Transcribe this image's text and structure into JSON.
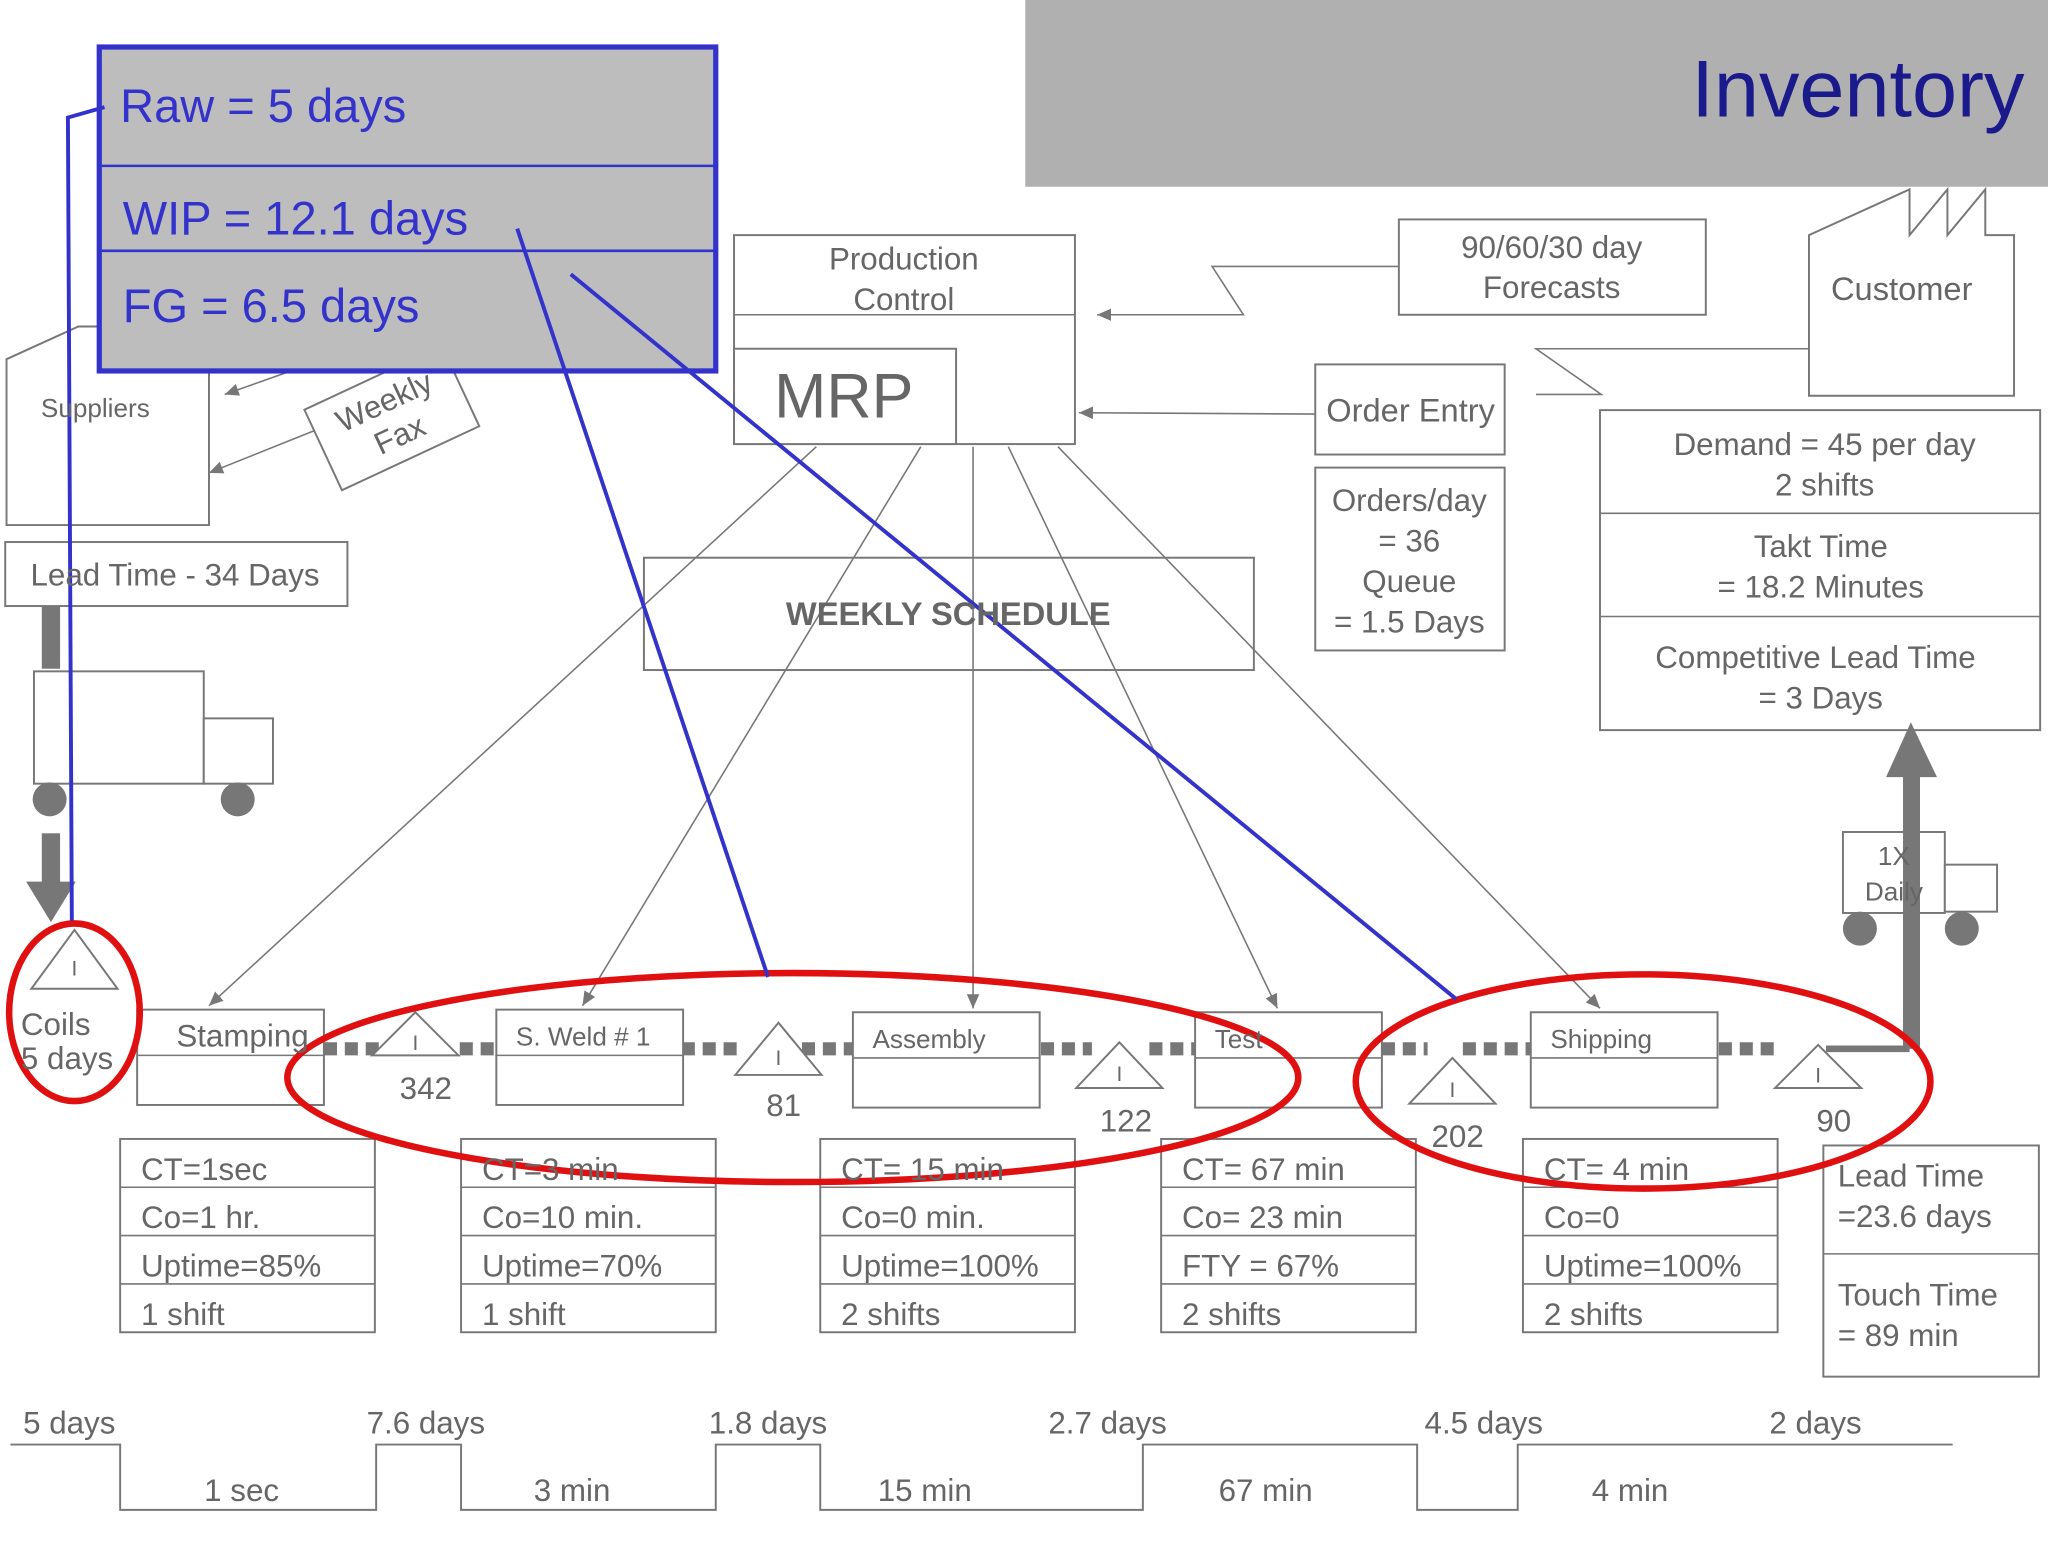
{
  "header": {
    "title": "Inventory"
  },
  "inventory_summary": {
    "raw": "Raw = 5 days",
    "wip": "WIP = 12.1 days",
    "fg": "FG   = 6.5 days"
  },
  "production_control": {
    "title": [
      "Production",
      "Control"
    ],
    "system": "MRP",
    "schedule": "WEEKLY SCHEDULE"
  },
  "forecasts": [
    "90/60/30 day",
    "Forecasts"
  ],
  "customer": {
    "label": "Customer",
    "order_entry": "Order Entry",
    "order_info": [
      "Orders/day",
      "= 36",
      "Queue",
      "= 1.5 Days"
    ],
    "requirements": [
      "Demand = 45 per day",
      "2 shifts",
      "Takt Time",
      "= 18.2 Minutes",
      "Competitive Lead Time",
      "= 3 Days"
    ]
  },
  "supplier": {
    "label": "Suppliers",
    "fax": [
      "Weekly",
      "Fax"
    ],
    "lead_time": "Lead Time - 34 Days"
  },
  "shipment": [
    "1X",
    "Daily"
  ],
  "raw_inventory": [
    "Coils",
    "5 days"
  ],
  "inventory_symbol": "I",
  "processes": [
    {
      "name": "Stamping",
      "data": [
        "CT=1sec",
        "Co=1 hr.",
        "Uptime=85%",
        "1 shift"
      ]
    },
    {
      "name": "S. Weld # 1",
      "data": [
        "CT=3 min",
        "Co=10 min.",
        "Uptime=70%",
        "1 shift"
      ]
    },
    {
      "name": "Assembly",
      "data": [
        "CT= 15 min",
        "Co=0 min.",
        "Uptime=100%",
        "2 shifts"
      ]
    },
    {
      "name": "Test",
      "data": [
        "CT= 67 min",
        "Co= 23 min",
        "FTY = 67%",
        "2 shifts"
      ]
    },
    {
      "name": "Shipping",
      "data": [
        "CT= 4 min",
        "Co=0",
        "Uptime=100%",
        "2 shifts"
      ]
    }
  ],
  "inventories": [
    "342",
    "81",
    "122",
    "202",
    "90"
  ],
  "totals": [
    "Lead Time",
    "=23.6 days",
    "Touch Time",
    "= 89 min"
  ],
  "timeline": {
    "waits": [
      "5 days",
      "7.6 days",
      "1.8 days",
      "2.7 days",
      "4.5 days",
      "2 days"
    ],
    "cycles": [
      "1 sec",
      "3 min",
      "15 min",
      "67 min",
      "4 min"
    ]
  }
}
